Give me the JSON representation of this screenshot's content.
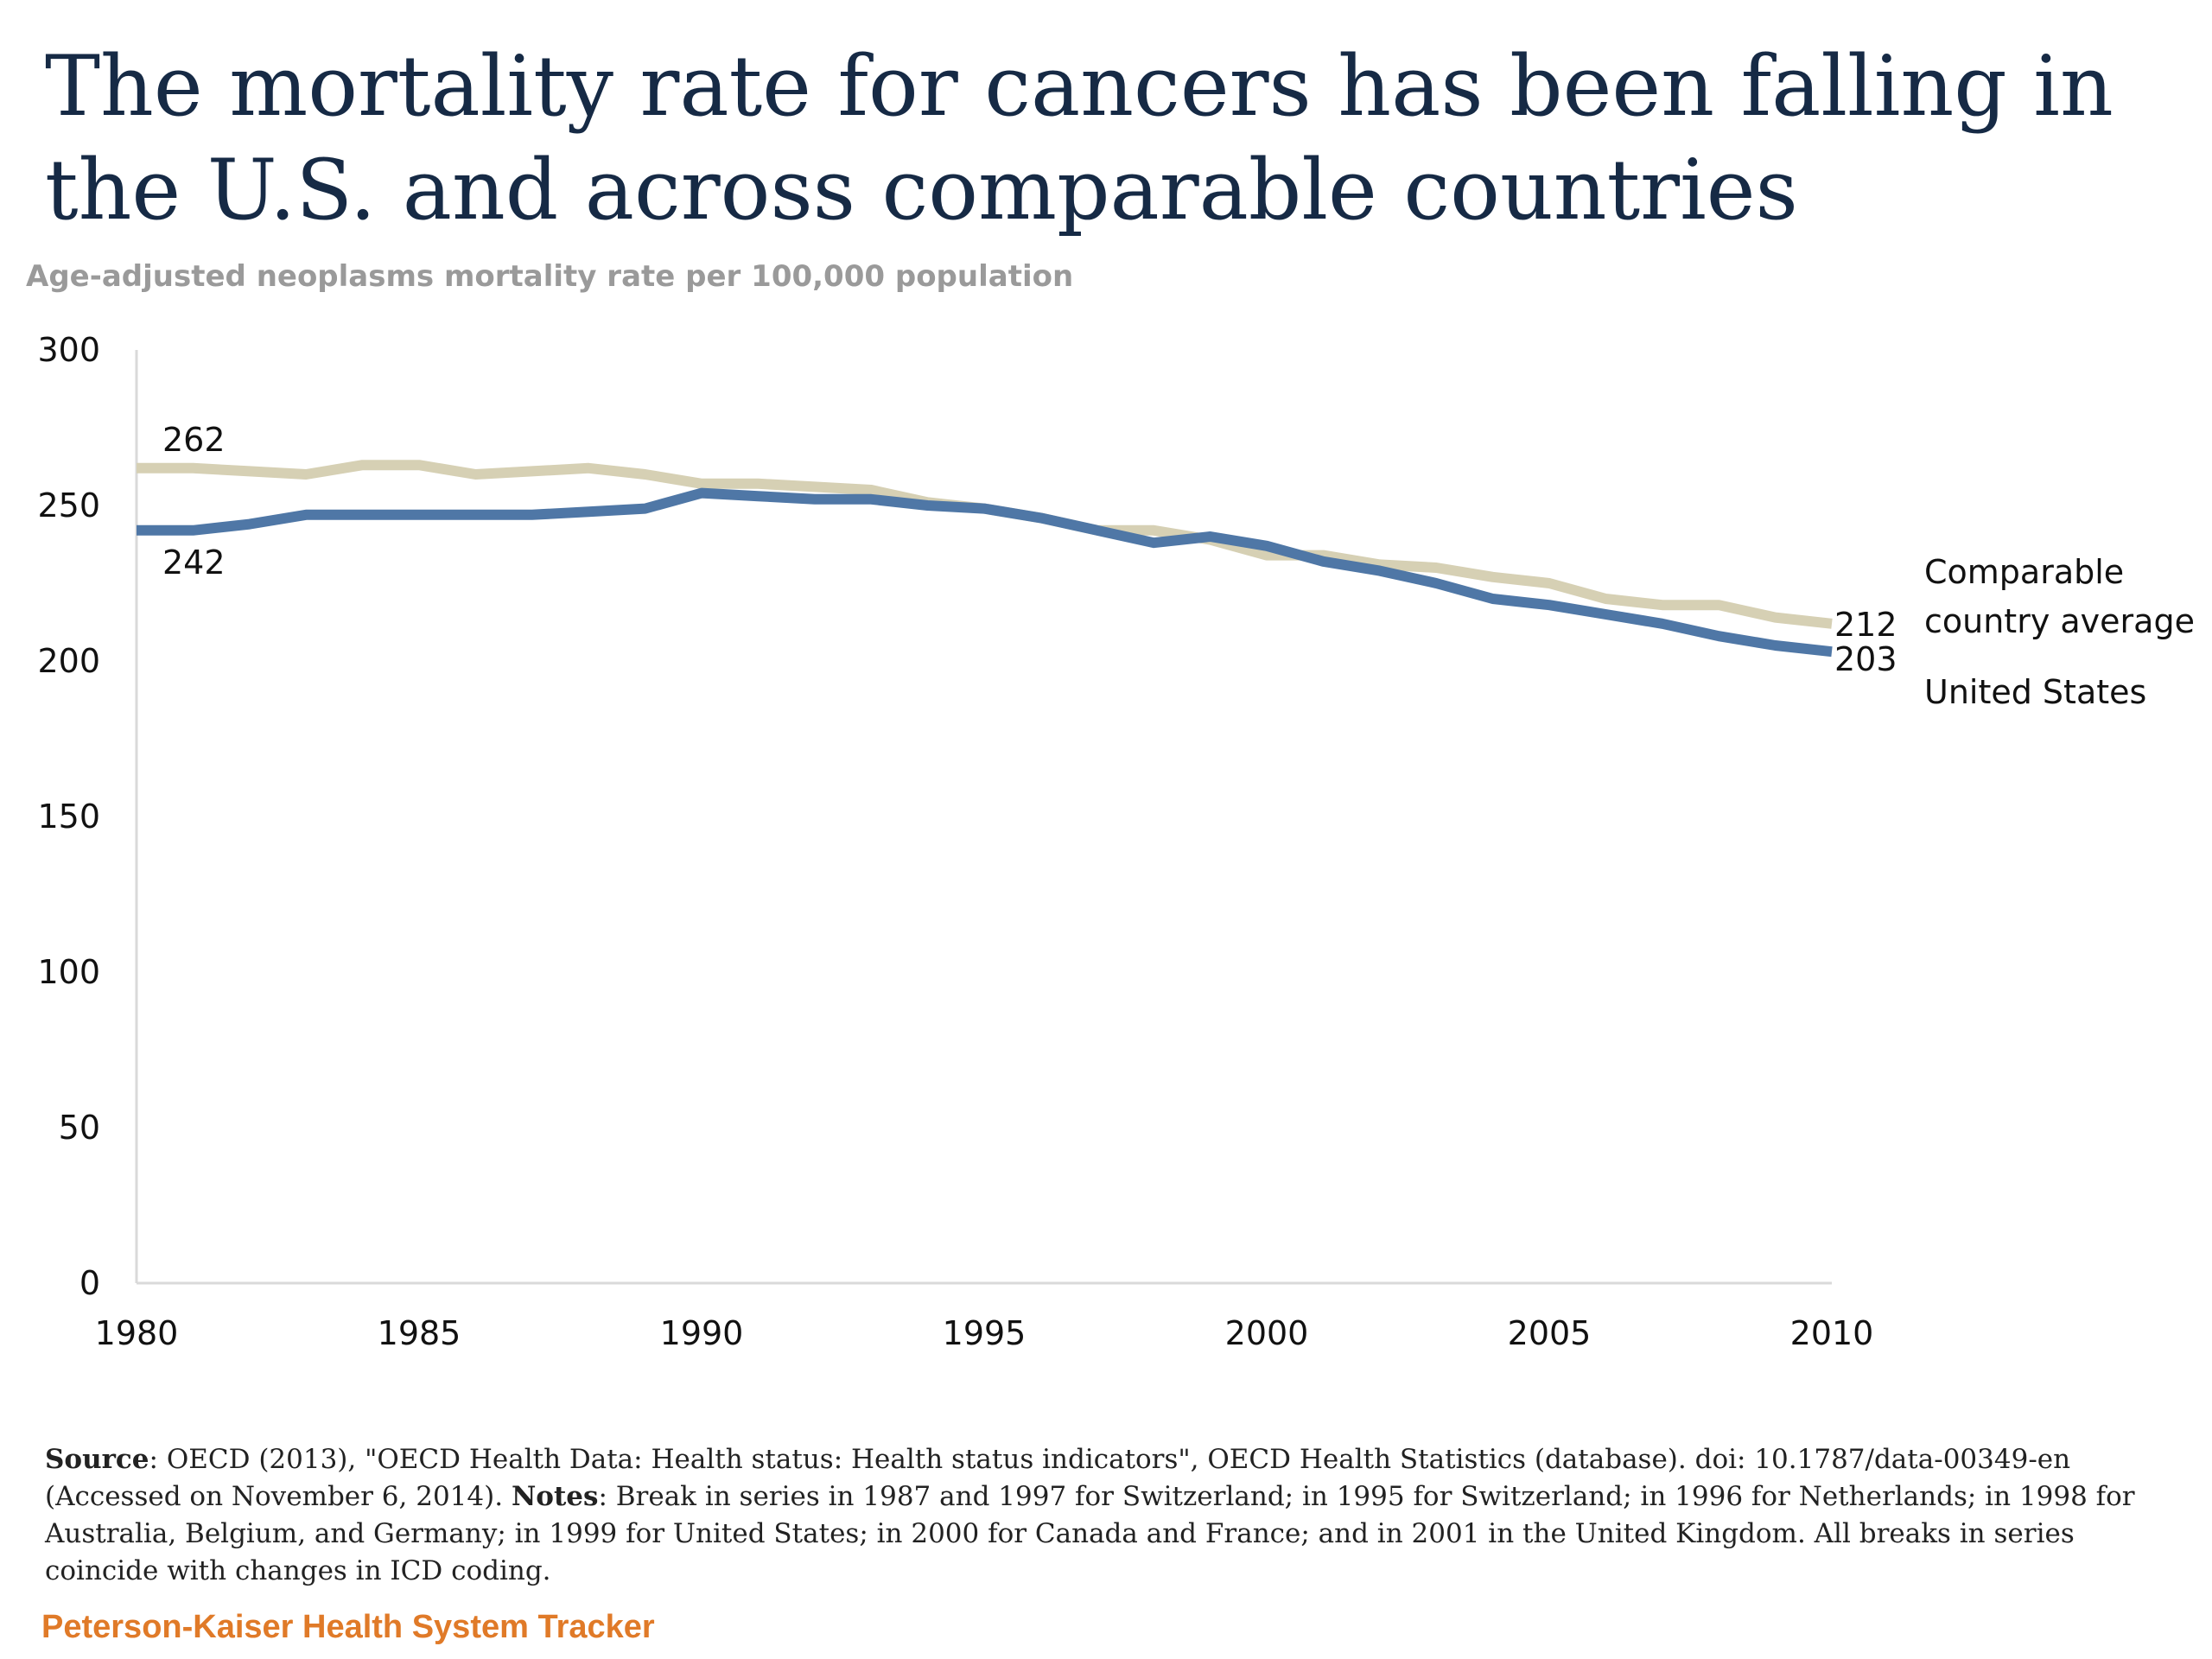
{
  "title": "The mortality rate for cancers has been falling in the U.S. and across comparable countries",
  "subtitle": "Age-adjusted neoplasms mortality rate per 100,000 population",
  "colors": {
    "us": "#4f77a6",
    "comparable": "#d6d0b4",
    "title": "#162a45",
    "brand": "#e07a28"
  },
  "chart_data": {
    "type": "line",
    "x": [
      1980,
      1981,
      1982,
      1983,
      1984,
      1985,
      1986,
      1987,
      1988,
      1989,
      1990,
      1991,
      1992,
      1993,
      1994,
      1995,
      1996,
      1997,
      1998,
      1999,
      2000,
      2001,
      2002,
      2003,
      2004,
      2005,
      2006,
      2007,
      2008,
      2009,
      2010
    ],
    "xticks": [
      "1980",
      "1985",
      "1990",
      "1995",
      "2000",
      "2005",
      "2010"
    ],
    "yticks": [
      "0",
      "50",
      "100",
      "150",
      "200",
      "250",
      "300"
    ],
    "ylim": [
      0,
      300
    ],
    "xlim": [
      1980,
      2010
    ],
    "grid": false,
    "series": [
      {
        "name": "Comparable country average",
        "legend_lines": [
          "Comparable",
          "country average"
        ],
        "color": "#d6d0b4",
        "values": [
          262,
          262,
          261,
          260,
          263,
          263,
          260,
          261,
          262,
          260,
          257,
          257,
          256,
          255,
          251,
          249,
          246,
          242,
          242,
          239,
          234,
          234,
          231,
          230,
          227,
          225,
          220,
          218,
          218,
          214,
          212
        ],
        "start_label": "262",
        "end_label": "212"
      },
      {
        "name": "United States",
        "legend_lines": [
          "United States"
        ],
        "color": "#4f77a6",
        "values": [
          242,
          242,
          244,
          247,
          247,
          247,
          247,
          247,
          248,
          249,
          254,
          253,
          252,
          252,
          250,
          249,
          246,
          242,
          238,
          240,
          237,
          232,
          229,
          225,
          220,
          218,
          215,
          212,
          208,
          205,
          203
        ],
        "start_label": "242",
        "end_label": "203"
      }
    ]
  },
  "footer": {
    "source_label": "Source",
    "source_text": ": OECD (2013), \"OECD Health Data: Health status: Health status indicators\", OECD Health Statistics (database). doi: 10.1787/data-00349-en (Accessed on November 6, 2014).",
    "notes_label": "Notes",
    "notes_text": ": Break in series in 1987 and 1997 for Switzerland;  in 1995 for Switzerland; in 1996 for Netherlands; in 1998 for Australia, Belgium, and Germany; in 1999 for United States;  in 2000 for Canada and France; and in 2001 in the United Kingdom. All breaks in series coincide with  changes in ICD coding.",
    "brand": "Peterson-Kaiser Health System Tracker"
  }
}
